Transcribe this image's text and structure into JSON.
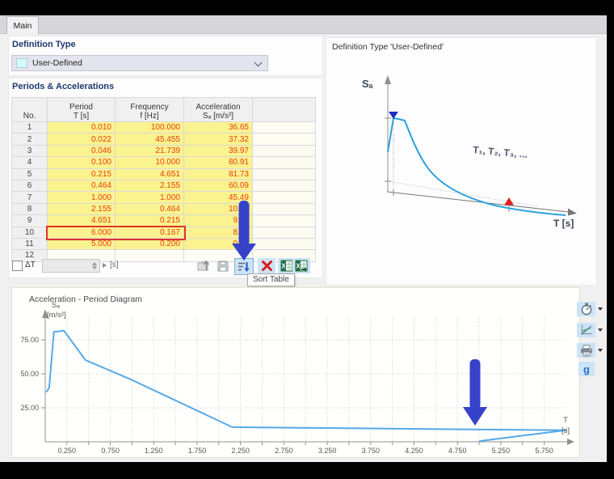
{
  "tab": {
    "label": "Main"
  },
  "definition_type": {
    "header": "Definition Type",
    "value": "User-Defined"
  },
  "periods": {
    "header": "Periods & Accelerations",
    "col_no": "No.",
    "col_period_1": "Period",
    "col_period_2": "T [s]",
    "col_freq_1": "Frequency",
    "col_freq_2": "f [Hz]",
    "col_accel_1": "Acceleration",
    "col_accel_2": "Sₐ [m/s²]",
    "rows": [
      [
        "1",
        "0.010",
        "100.000",
        "36.65"
      ],
      [
        "2",
        "0.022",
        "45.455",
        "37.32"
      ],
      [
        "3",
        "0.046",
        "21.739",
        "39.97"
      ],
      [
        "4",
        "0.100",
        "10.000",
        "80.91"
      ],
      [
        "5",
        "0.215",
        "4.651",
        "81.73"
      ],
      [
        "6",
        "0.464",
        "2.155",
        "60.09"
      ],
      [
        "7",
        "1.000",
        "1.000",
        "45.49"
      ],
      [
        "8",
        "2.155",
        "0.464",
        "10.75"
      ],
      [
        "9",
        "4.651",
        "0.215",
        "9.21"
      ],
      [
        "10",
        "6.000",
        "0.167",
        "8.50"
      ],
      [
        "11",
        "5.000",
        "0.200",
        "0.50"
      ],
      [
        "12",
        "",
        "",
        ""
      ]
    ],
    "highlight_row": 10,
    "footer": {
      "dt_label": "ΔT",
      "unit": "[s]"
    },
    "tooltip": "Sort Table"
  },
  "right_panel": {
    "title": "Definition Type 'User-Defined'",
    "sa_label": "Sₐ",
    "series_label": "T₁, T₂, T₃, ...",
    "t_label": "T [s]"
  },
  "chart_panel": {
    "title": "Acceleration - Period Diagram"
  },
  "chart_data": {
    "type": "line",
    "title": "Acceleration - Period Diagram",
    "xlabel": "T [s]",
    "ylabel": "Sₐ [m/s²]",
    "xlabel_lines": [
      "T",
      "[s]"
    ],
    "ylabel_lines": [
      "Sₐ",
      "[m/s²]"
    ],
    "points": [
      [
        0.01,
        36.65
      ],
      [
        0.022,
        37.32
      ],
      [
        0.046,
        39.97
      ],
      [
        0.1,
        80.91
      ],
      [
        0.215,
        81.73
      ],
      [
        0.464,
        60.09
      ],
      [
        1.0,
        45.49
      ],
      [
        2.155,
        10.75
      ],
      [
        4.651,
        9.21
      ],
      [
        6.0,
        8.5
      ],
      [
        5.0,
        0.5
      ]
    ],
    "x_tick_step": 0.25,
    "x_tick_labels": [
      "0.250",
      "0.750",
      "1.250",
      "1.750",
      "2.250",
      "2.750",
      "3.250",
      "3.750",
      "4.250",
      "4.750",
      "5.250",
      "5.750"
    ],
    "y_ticks": [
      {
        "value": 25,
        "label": "25.00"
      },
      {
        "value": 50,
        "label": "50.00"
      },
      {
        "value": 75,
        "label": "75.00"
      }
    ],
    "xlim": [
      0,
      6.1
    ],
    "ylim": [
      0,
      92
    ],
    "grid": true,
    "legend": "none"
  },
  "colors": {
    "cell_bg": "#fbf290",
    "cell_value": "#e8400c",
    "highlight_outline": "#e03528",
    "annotation_arrow": "#3642c9",
    "curve": "#55a8e8",
    "diagram_curve": "#2da0e0",
    "button_highlight": "#cde3f6"
  }
}
